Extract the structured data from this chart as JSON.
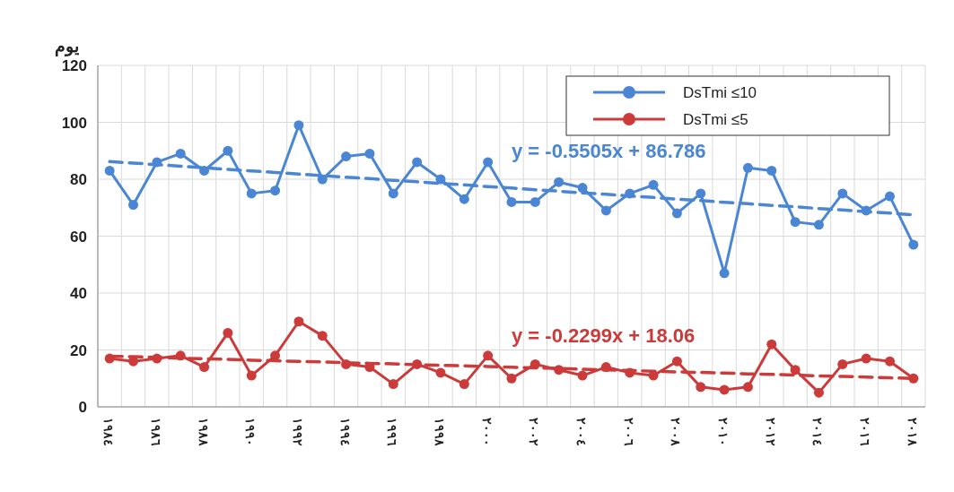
{
  "chart_data": {
    "type": "line",
    "ylabel": "يوم",
    "categories": [
      "١٩٨٤",
      null,
      "١٩٨٦",
      null,
      "١٩٨٨",
      null,
      "١٩٩٠",
      null,
      "١٩٩٢",
      null,
      "١٩٩٤",
      null,
      "١٩٩٦",
      null,
      "١٩٩٨",
      null,
      "٢٠٠٠",
      null,
      "٢٠٠٢",
      null,
      "٢٠٠٤",
      null,
      "٢٠٠٦",
      null,
      "٢٠٠٨",
      null,
      "٢٠١٠",
      null,
      "٢٠١٢",
      null,
      "٢٠١٤",
      null,
      "٢٠١٦",
      null,
      "٢٠١٨"
    ],
    "series": [
      {
        "name": "DsTmi ≤10",
        "color": "#4a86d4",
        "marker": "circle",
        "line_style": "solid",
        "values": [
          83,
          71,
          86,
          89,
          83,
          90,
          75,
          76,
          99,
          80,
          88,
          89,
          75,
          86,
          80,
          73,
          86,
          72,
          72,
          79,
          77,
          69,
          75,
          78,
          68,
          75,
          47,
          84,
          83,
          65,
          64,
          75,
          69,
          74,
          57
        ]
      },
      {
        "name": "DsTmi ≤5",
        "color": "#cc3a3a",
        "marker": "circle",
        "line_style": "solid",
        "values": [
          17,
          16,
          17,
          18,
          14,
          26,
          11,
          18,
          30,
          25,
          15,
          14,
          8,
          15,
          12,
          8,
          18,
          10,
          15,
          13,
          11,
          14,
          12,
          11,
          16,
          7,
          6,
          7,
          22,
          13,
          5,
          15,
          17,
          16,
          10
        ]
      },
      {
        "type": "line",
        "color": "#4a86d4",
        "marker": "none",
        "line_style": "dashed",
        "values": [
          86.2,
          85.7,
          85.1,
          84.6,
          84.0,
          83.5,
          82.9,
          82.4,
          81.8,
          81.3,
          80.7,
          80.2,
          79.6,
          79.1,
          78.5,
          78.0,
          77.4,
          76.9,
          76.3,
          75.8,
          75.2,
          74.7,
          74.1,
          73.6,
          73.0,
          72.5,
          71.9,
          71.4,
          70.8,
          70.3,
          69.7,
          69.2,
          68.6,
          68.1,
          67.5
        ]
      },
      {
        "type": "line",
        "color": "#cc3a3a",
        "marker": "none",
        "line_style": "dashed",
        "values": [
          17.8,
          17.6,
          17.4,
          17.1,
          16.9,
          16.7,
          16.4,
          16.2,
          16.0,
          15.8,
          15.5,
          15.3,
          15.1,
          14.8,
          14.6,
          14.4,
          14.2,
          13.9,
          13.7,
          13.5,
          13.2,
          13.0,
          12.8,
          12.5,
          12.3,
          12.1,
          11.9,
          11.6,
          11.4,
          11.2,
          10.9,
          10.7,
          10.5,
          10.2,
          10.0
        ]
      }
    ],
    "annotations": [
      "y = -0.5505x + 86.786",
      "y = -0.2299x + 18.06"
    ],
    "ylim": [
      0,
      120
    ],
    "yticks": [
      0,
      20,
      40,
      60,
      80,
      100,
      120
    ],
    "grid": true,
    "legend": "top right"
  }
}
